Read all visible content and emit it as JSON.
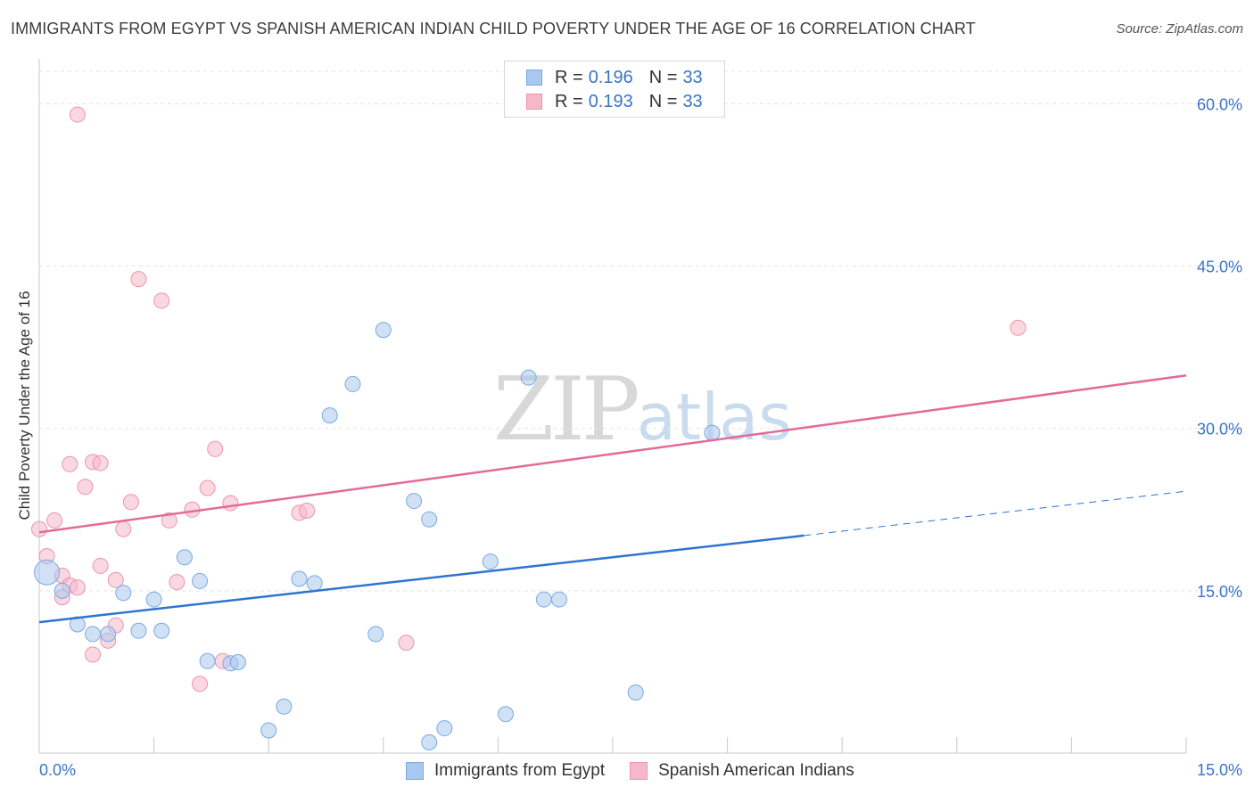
{
  "header": {
    "title": "IMMIGRANTS FROM EGYPT VS SPANISH AMERICAN INDIAN CHILD POVERTY UNDER THE AGE OF 16 CORRELATION CHART",
    "source": "Source: ZipAtlas.com"
  },
  "watermark": {
    "zip": "ZIP",
    "atlas": "atlas"
  },
  "legend_top": {
    "rows": [
      {
        "r_label": "R =",
        "r_value": "0.196",
        "n_label": "N =",
        "n_value": "33"
      },
      {
        "r_label": "R =",
        "r_value": "0.193",
        "n_label": "N =",
        "n_value": "33"
      }
    ]
  },
  "legend_bottom": {
    "items": [
      "Immigrants from Egypt",
      "Spanish American Indians"
    ]
  },
  "chart_data": {
    "type": "scatter",
    "ylabel": "Child Poverty Under the Age of 16",
    "xlabel": "",
    "xlim": [
      0,
      15
    ],
    "ylim": [
      0,
      60
    ],
    "x_tick_labels": [
      "0.0%",
      "15.0%"
    ],
    "y_ticks": [
      15,
      30,
      45,
      60
    ],
    "y_tick_labels": [
      "15.0%",
      "30.0%",
      "45.0%",
      "60.0%"
    ],
    "grid": true,
    "colors": {
      "blue_fill": "#a9c8ef",
      "blue_stroke": "#7aa9e0",
      "blue_line": "#2f74d0",
      "pink_fill": "#f5b8ca",
      "pink_stroke": "#ec93ad",
      "pink_line": "#e46a97",
      "tick_label": "#3a74c9",
      "grid": "#e3e3e3"
    },
    "series": [
      {
        "name": "Immigrants from Egypt",
        "color": "blue",
        "points": [
          [
            0.1,
            16.7
          ],
          [
            0.3,
            15.0
          ],
          [
            0.5,
            11.9
          ],
          [
            0.7,
            11.0
          ],
          [
            0.9,
            11.0
          ],
          [
            1.1,
            14.8
          ],
          [
            1.3,
            11.3
          ],
          [
            1.5,
            14.2
          ],
          [
            1.6,
            11.3
          ],
          [
            1.9,
            18.1
          ],
          [
            2.1,
            15.9
          ],
          [
            2.2,
            8.5
          ],
          [
            2.5,
            8.3
          ],
          [
            2.6,
            8.4
          ],
          [
            3.0,
            2.1
          ],
          [
            3.2,
            4.3
          ],
          [
            3.4,
            16.1
          ],
          [
            3.6,
            15.7
          ],
          [
            3.8,
            31.2
          ],
          [
            4.1,
            34.1
          ],
          [
            4.4,
            11.0
          ],
          [
            4.5,
            39.1
          ],
          [
            4.9,
            23.3
          ],
          [
            5.1,
            21.6
          ],
          [
            5.1,
            1.0
          ],
          [
            5.3,
            2.3
          ],
          [
            5.9,
            17.7
          ],
          [
            6.1,
            3.6
          ],
          [
            6.4,
            34.7
          ],
          [
            6.6,
            14.2
          ],
          [
            6.8,
            14.2
          ],
          [
            7.8,
            5.6
          ],
          [
            8.8,
            29.6
          ]
        ],
        "trend": {
          "x": [
            0.0,
            10.0
          ],
          "y": [
            12.1,
            20.1
          ]
        },
        "trend_extension": {
          "x": [
            10.0,
            15.0
          ],
          "y": [
            20.1,
            24.2
          ]
        }
      },
      {
        "name": "Spanish American Indians",
        "color": "pink",
        "points": [
          [
            0.0,
            20.7
          ],
          [
            0.1,
            18.2
          ],
          [
            0.2,
            21.5
          ],
          [
            0.3,
            16.4
          ],
          [
            0.3,
            14.4
          ],
          [
            0.4,
            15.5
          ],
          [
            0.4,
            26.7
          ],
          [
            0.5,
            15.3
          ],
          [
            0.5,
            59.0
          ],
          [
            0.6,
            24.6
          ],
          [
            0.7,
            26.9
          ],
          [
            0.7,
            9.1
          ],
          [
            0.8,
            26.8
          ],
          [
            0.8,
            17.3
          ],
          [
            0.9,
            10.4
          ],
          [
            1.0,
            16.0
          ],
          [
            1.0,
            11.8
          ],
          [
            1.1,
            20.7
          ],
          [
            1.2,
            23.2
          ],
          [
            1.3,
            43.8
          ],
          [
            1.6,
            41.8
          ],
          [
            1.7,
            21.5
          ],
          [
            1.8,
            15.8
          ],
          [
            2.0,
            22.5
          ],
          [
            2.1,
            6.4
          ],
          [
            2.2,
            24.5
          ],
          [
            2.3,
            28.1
          ],
          [
            2.4,
            8.5
          ],
          [
            2.5,
            23.1
          ],
          [
            3.4,
            22.2
          ],
          [
            3.5,
            22.4
          ],
          [
            4.8,
            10.2
          ],
          [
            12.8,
            39.3
          ]
        ],
        "trend": {
          "x": [
            0.0,
            15.0
          ],
          "y": [
            20.4,
            34.9
          ]
        }
      }
    ]
  }
}
